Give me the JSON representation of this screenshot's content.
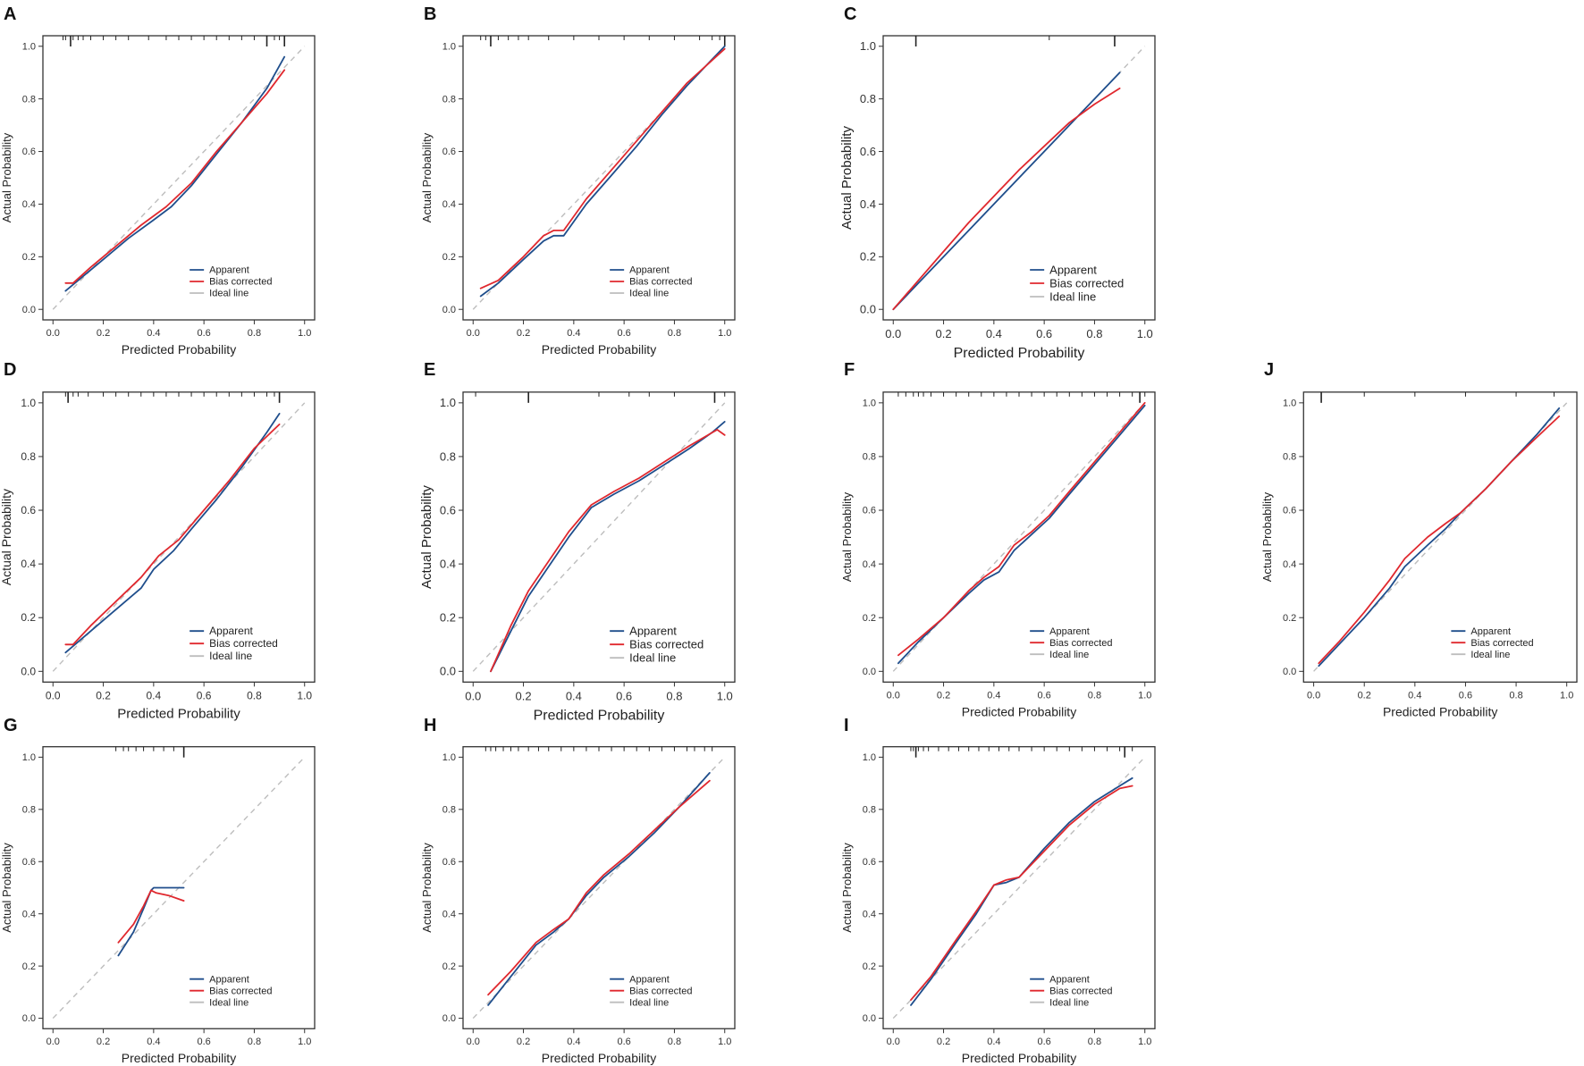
{
  "figure": {
    "description_label": "Calibration curves"
  },
  "colors": {
    "apparent": "#1f4e8c",
    "bias_corrected": "#e0282e",
    "ideal": "#bdbdbd",
    "axis": "#333333"
  },
  "chart_data": [
    {
      "type": "line",
      "panel": "A",
      "xlabel": "Predicted Probability",
      "ylabel": "Actual Probability",
      "xlim": [
        0,
        1
      ],
      "ylim": [
        0,
        1
      ],
      "xticks": [
        "0.0",
        "0.2",
        "0.4",
        "0.6",
        "0.8",
        "1.0"
      ],
      "yticks": [
        "0.0",
        "0.2",
        "0.4",
        "0.6",
        "0.8",
        "1.0"
      ],
      "legend": [
        "Apparent",
        "Bias corrected",
        "Ideal line"
      ],
      "series": [
        {
          "name": "Apparent",
          "x": [
            0.05,
            0.1,
            0.2,
            0.3,
            0.4,
            0.47,
            0.55,
            0.65,
            0.75,
            0.85,
            0.92
          ],
          "y": [
            0.07,
            0.11,
            0.19,
            0.27,
            0.34,
            0.39,
            0.47,
            0.59,
            0.71,
            0.84,
            0.96
          ]
        },
        {
          "name": "Bias corrected",
          "x": [
            0.05,
            0.08,
            0.15,
            0.25,
            0.35,
            0.45,
            0.55,
            0.65,
            0.75,
            0.85,
            0.92
          ],
          "y": [
            0.1,
            0.1,
            0.16,
            0.24,
            0.32,
            0.39,
            0.48,
            0.6,
            0.71,
            0.82,
            0.91
          ]
        }
      ],
      "rug": [
        0.04,
        0.05,
        0.07,
        0.08,
        0.1,
        0.12,
        0.15,
        0.2,
        0.25,
        0.3,
        0.38,
        0.45,
        0.5,
        0.55,
        0.6,
        0.65,
        0.7,
        0.75,
        0.8,
        0.85,
        0.88,
        0.9,
        0.92
      ],
      "rug_tall": [
        0.07,
        0.85,
        0.92
      ]
    },
    {
      "type": "line",
      "panel": "B",
      "xlabel": "Predicted Probability",
      "ylabel": "Actual Probability",
      "xlim": [
        0,
        1
      ],
      "ylim": [
        0,
        1
      ],
      "xticks": [
        "0.0",
        "0.2",
        "0.4",
        "0.6",
        "0.8",
        "1.0"
      ],
      "yticks": [
        "0.0",
        "0.2",
        "0.4",
        "0.6",
        "0.8",
        "1.0"
      ],
      "legend": [
        "Apparent",
        "Bias corrected",
        "Ideal line"
      ],
      "series": [
        {
          "name": "Apparent",
          "x": [
            0.03,
            0.1,
            0.2,
            0.28,
            0.32,
            0.36,
            0.45,
            0.55,
            0.65,
            0.75,
            0.85,
            1.0
          ],
          "y": [
            0.05,
            0.1,
            0.19,
            0.26,
            0.28,
            0.28,
            0.4,
            0.51,
            0.62,
            0.74,
            0.85,
            1.0
          ]
        },
        {
          "name": "Bias corrected",
          "x": [
            0.03,
            0.1,
            0.2,
            0.28,
            0.32,
            0.36,
            0.45,
            0.55,
            0.65,
            0.75,
            0.85,
            1.0
          ],
          "y": [
            0.08,
            0.11,
            0.2,
            0.28,
            0.3,
            0.3,
            0.42,
            0.53,
            0.64,
            0.75,
            0.86,
            0.99
          ]
        }
      ],
      "rug": [
        0.03,
        0.05,
        0.07,
        0.1,
        0.14,
        0.18,
        0.22,
        0.3,
        0.4,
        0.5,
        0.6,
        0.7,
        0.8,
        0.9,
        0.95,
        0.98,
        1.0
      ],
      "rug_tall": [
        0.07,
        1.0
      ]
    },
    {
      "type": "line",
      "panel": "C",
      "xlabel": "Predicted Probability",
      "ylabel": "Actual Probability",
      "xlim": [
        0,
        1
      ],
      "ylim": [
        0,
        1
      ],
      "xticks": [
        "0.0",
        "0.2",
        "0.4",
        "0.6",
        "0.8",
        "1.0"
      ],
      "yticks": [
        "0.0",
        "0.2",
        "0.4",
        "0.6",
        "0.8",
        "1.0"
      ],
      "legend": [
        "Apparent",
        "Bias corrected",
        "Ideal line"
      ],
      "series": [
        {
          "name": "Apparent",
          "x": [
            0.0,
            0.2,
            0.4,
            0.6,
            0.8,
            0.9
          ],
          "y": [
            0.0,
            0.2,
            0.4,
            0.6,
            0.8,
            0.9
          ]
        },
        {
          "name": "Bias corrected",
          "x": [
            0.0,
            0.1,
            0.2,
            0.3,
            0.4,
            0.5,
            0.6,
            0.7,
            0.8,
            0.9
          ],
          "y": [
            0.0,
            0.11,
            0.22,
            0.33,
            0.43,
            0.53,
            0.62,
            0.71,
            0.78,
            0.84
          ]
        }
      ],
      "rug": [
        0.09,
        0.62,
        0.88
      ],
      "rug_tall": [
        0.09,
        0.88
      ]
    },
    {
      "type": "line",
      "panel": "D",
      "xlabel": "Predicted Probability",
      "ylabel": "Actual Probability",
      "xlim": [
        0,
        1
      ],
      "ylim": [
        0,
        1
      ],
      "xticks": [
        "0.0",
        "0.2",
        "0.4",
        "0.6",
        "0.8",
        "1.0"
      ],
      "yticks": [
        "0.0",
        "0.2",
        "0.4",
        "0.6",
        "0.8",
        "1.0"
      ],
      "legend": [
        "Apparent",
        "Bias corrected",
        "Ideal line"
      ],
      "series": [
        {
          "name": "Apparent",
          "x": [
            0.05,
            0.1,
            0.2,
            0.3,
            0.35,
            0.4,
            0.48,
            0.55,
            0.65,
            0.75,
            0.85,
            0.9
          ],
          "y": [
            0.07,
            0.11,
            0.19,
            0.27,
            0.31,
            0.38,
            0.45,
            0.53,
            0.64,
            0.76,
            0.89,
            0.96
          ]
        },
        {
          "name": "Bias corrected",
          "x": [
            0.05,
            0.08,
            0.15,
            0.25,
            0.35,
            0.42,
            0.5,
            0.6,
            0.7,
            0.8,
            0.9
          ],
          "y": [
            0.1,
            0.1,
            0.17,
            0.26,
            0.35,
            0.43,
            0.49,
            0.6,
            0.71,
            0.83,
            0.92
          ]
        }
      ],
      "rug": [
        0.05,
        0.06,
        0.08,
        0.1,
        0.14,
        0.2,
        0.25,
        0.3,
        0.35,
        0.4,
        0.45,
        0.5,
        0.55,
        0.6,
        0.65,
        0.7,
        0.75,
        0.8,
        0.85,
        0.88,
        0.9
      ],
      "rug_tall": [
        0.06,
        0.9
      ]
    },
    {
      "type": "line",
      "panel": "E",
      "xlabel": "Predicted Probability",
      "ylabel": "Actual Probability",
      "xlim": [
        0,
        1
      ],
      "ylim": [
        0,
        1
      ],
      "xticks": [
        "0.0",
        "0.2",
        "0.4",
        "0.6",
        "0.8",
        "1.0"
      ],
      "yticks": [
        "0.0",
        "0.2",
        "0.4",
        "0.6",
        "0.8",
        "1.0"
      ],
      "legend": [
        "Apparent",
        "Bias corrected",
        "Ideal line"
      ],
      "series": [
        {
          "name": "Apparent",
          "x": [
            0.07,
            0.15,
            0.22,
            0.3,
            0.38,
            0.47,
            0.56,
            0.66,
            0.76,
            0.86,
            0.95,
            1.0
          ],
          "y": [
            0.0,
            0.15,
            0.28,
            0.39,
            0.5,
            0.61,
            0.66,
            0.71,
            0.77,
            0.83,
            0.89,
            0.93
          ]
        },
        {
          "name": "Bias corrected",
          "x": [
            0.07,
            0.15,
            0.22,
            0.3,
            0.38,
            0.47,
            0.56,
            0.66,
            0.76,
            0.86,
            0.97,
            1.0
          ],
          "y": [
            0.0,
            0.17,
            0.3,
            0.41,
            0.52,
            0.62,
            0.67,
            0.72,
            0.78,
            0.84,
            0.9,
            0.88
          ]
        }
      ],
      "rug": [
        0.01,
        0.22,
        0.5,
        0.62,
        0.7,
        0.8,
        0.96,
        1.0
      ],
      "rug_tall": [
        0.22,
        0.96
      ]
    },
    {
      "type": "line",
      "panel": "F",
      "xlabel": "Predicted Probability",
      "ylabel": "Actual Probability",
      "xlim": [
        0,
        1
      ],
      "ylim": [
        0,
        1
      ],
      "xticks": [
        "0.0",
        "0.2",
        "0.4",
        "0.6",
        "0.8",
        "1.0"
      ],
      "yticks": [
        "0.0",
        "0.2",
        "0.4",
        "0.6",
        "0.8",
        "1.0"
      ],
      "legend": [
        "Apparent",
        "Bias corrected",
        "Ideal line"
      ],
      "series": [
        {
          "name": "Apparent",
          "x": [
            0.02,
            0.1,
            0.2,
            0.3,
            0.36,
            0.42,
            0.48,
            0.55,
            0.62,
            0.7,
            0.8,
            0.9,
            1.0
          ],
          "y": [
            0.03,
            0.11,
            0.2,
            0.29,
            0.34,
            0.37,
            0.45,
            0.51,
            0.57,
            0.66,
            0.77,
            0.88,
            0.99
          ]
        },
        {
          "name": "Bias corrected",
          "x": [
            0.02,
            0.1,
            0.2,
            0.3,
            0.36,
            0.42,
            0.48,
            0.55,
            0.62,
            0.7,
            0.8,
            0.9,
            1.0
          ],
          "y": [
            0.06,
            0.12,
            0.2,
            0.3,
            0.35,
            0.39,
            0.47,
            0.52,
            0.58,
            0.67,
            0.78,
            0.89,
            1.0
          ]
        }
      ],
      "rug": [
        0.02,
        0.05,
        0.08,
        0.1,
        0.12,
        0.15,
        0.2,
        0.25,
        0.3,
        0.35,
        0.4,
        0.45,
        0.5,
        0.55,
        0.6,
        0.65,
        0.7,
        0.75,
        0.8,
        0.85,
        0.9,
        0.95,
        0.98,
        1.0
      ],
      "rug_tall": [
        0.98
      ]
    },
    {
      "type": "line",
      "panel": "J",
      "xlabel": "Predicted Probability",
      "ylabel": "Actual Probability",
      "xlim": [
        0,
        1
      ],
      "ylim": [
        0,
        1
      ],
      "xticks": [
        "0.0",
        "0.2",
        "0.4",
        "0.6",
        "0.8",
        "1.0"
      ],
      "yticks": [
        "0.0",
        "0.2",
        "0.4",
        "0.6",
        "0.8",
        "1.0"
      ],
      "legend": [
        "Apparent",
        "Bias corrected",
        "Ideal line"
      ],
      "series": [
        {
          "name": "Apparent",
          "x": [
            0.02,
            0.1,
            0.2,
            0.3,
            0.36,
            0.45,
            0.52,
            0.58,
            0.68,
            0.78,
            0.88,
            0.97
          ],
          "y": [
            0.02,
            0.1,
            0.2,
            0.31,
            0.39,
            0.47,
            0.53,
            0.59,
            0.68,
            0.78,
            0.88,
            0.98
          ]
        },
        {
          "name": "Bias corrected",
          "x": [
            0.02,
            0.1,
            0.2,
            0.3,
            0.36,
            0.45,
            0.52,
            0.58,
            0.68,
            0.78,
            0.88,
            0.97
          ],
          "y": [
            0.03,
            0.11,
            0.22,
            0.34,
            0.42,
            0.5,
            0.55,
            0.59,
            0.68,
            0.78,
            0.87,
            0.95
          ]
        }
      ],
      "rug": [
        0.03,
        0.2,
        0.4,
        0.6,
        0.8,
        0.95
      ],
      "rug_tall": [
        0.03
      ]
    },
    {
      "type": "line",
      "panel": "G",
      "xlabel": "Predicted Probability",
      "ylabel": "Actual Probability",
      "xlim": [
        0,
        1
      ],
      "ylim": [
        0,
        1
      ],
      "xticks": [
        "0.0",
        "0.2",
        "0.4",
        "0.6",
        "0.8",
        "1.0"
      ],
      "yticks": [
        "0.0",
        "0.2",
        "0.4",
        "0.6",
        "0.8",
        "1.0"
      ],
      "legend": [
        "Apparent",
        "Bias corrected",
        "Ideal line"
      ],
      "series": [
        {
          "name": "Apparent",
          "x": [
            0.26,
            0.32,
            0.36,
            0.39,
            0.4,
            0.45,
            0.52
          ],
          "y": [
            0.24,
            0.33,
            0.42,
            0.49,
            0.5,
            0.5,
            0.5
          ]
        },
        {
          "name": "Bias corrected",
          "x": [
            0.26,
            0.32,
            0.36,
            0.39,
            0.41,
            0.46,
            0.52
          ],
          "y": [
            0.29,
            0.36,
            0.43,
            0.49,
            0.48,
            0.47,
            0.45
          ]
        }
      ],
      "rug": [
        0.25,
        0.28,
        0.3,
        0.33,
        0.36,
        0.4,
        0.44,
        0.48,
        0.52
      ],
      "rug_tall": [
        0.52
      ]
    },
    {
      "type": "line",
      "panel": "H",
      "xlabel": "Predicted Probability",
      "ylabel": "Actual Probability",
      "xlim": [
        0,
        1
      ],
      "ylim": [
        0,
        1
      ],
      "xticks": [
        "0.0",
        "0.2",
        "0.4",
        "0.6",
        "0.8",
        "1.0"
      ],
      "yticks": [
        "0.0",
        "0.2",
        "0.4",
        "0.6",
        "0.8",
        "1.0"
      ],
      "legend": [
        "Apparent",
        "Bias corrected",
        "Ideal line"
      ],
      "series": [
        {
          "name": "Apparent",
          "x": [
            0.06,
            0.15,
            0.25,
            0.32,
            0.38,
            0.45,
            0.52,
            0.62,
            0.72,
            0.82,
            0.94
          ],
          "y": [
            0.05,
            0.16,
            0.28,
            0.33,
            0.38,
            0.47,
            0.54,
            0.62,
            0.71,
            0.81,
            0.94
          ]
        },
        {
          "name": "Bias corrected",
          "x": [
            0.06,
            0.15,
            0.25,
            0.32,
            0.38,
            0.45,
            0.52,
            0.62,
            0.72,
            0.82,
            0.94
          ],
          "y": [
            0.09,
            0.18,
            0.29,
            0.34,
            0.38,
            0.48,
            0.55,
            0.63,
            0.72,
            0.81,
            0.91
          ]
        }
      ],
      "rug": [
        0.05,
        0.07,
        0.09,
        0.12,
        0.15,
        0.18,
        0.22,
        0.26,
        0.3,
        0.35,
        0.4,
        0.45,
        0.5,
        0.55,
        0.6,
        0.65,
        0.7,
        0.75,
        0.8,
        0.85,
        0.88,
        0.92,
        0.95
      ],
      "rug_tall": [
        0.93
      ]
    },
    {
      "type": "line",
      "panel": "I",
      "xlabel": "Predicted Probability",
      "ylabel": "Actual Probability",
      "xlim": [
        0,
        1
      ],
      "ylim": [
        0,
        1
      ],
      "xticks": [
        "0.0",
        "0.2",
        "0.4",
        "0.6",
        "0.8",
        "1.0"
      ],
      "yticks": [
        "0.0",
        "0.2",
        "0.4",
        "0.6",
        "0.8",
        "1.0"
      ],
      "legend": [
        "Apparent",
        "Bias corrected",
        "Ideal line"
      ],
      "series": [
        {
          "name": "Apparent",
          "x": [
            0.07,
            0.15,
            0.25,
            0.33,
            0.4,
            0.45,
            0.5,
            0.6,
            0.7,
            0.8,
            0.9,
            0.95
          ],
          "y": [
            0.05,
            0.15,
            0.29,
            0.4,
            0.51,
            0.52,
            0.54,
            0.65,
            0.75,
            0.83,
            0.89,
            0.92
          ]
        },
        {
          "name": "Bias corrected",
          "x": [
            0.07,
            0.15,
            0.25,
            0.33,
            0.4,
            0.45,
            0.5,
            0.6,
            0.7,
            0.8,
            0.9,
            0.95
          ],
          "y": [
            0.07,
            0.16,
            0.3,
            0.41,
            0.51,
            0.53,
            0.54,
            0.64,
            0.74,
            0.82,
            0.88,
            0.89
          ]
        }
      ],
      "rug": [
        0.07,
        0.08,
        0.09,
        0.1,
        0.12,
        0.14,
        0.18,
        0.22,
        0.26,
        0.3,
        0.34,
        0.38,
        0.42,
        0.46,
        0.5,
        0.55,
        0.6,
        0.65,
        0.7,
        0.75,
        0.8,
        0.85,
        0.9,
        0.92,
        0.95
      ],
      "rug_tall": [
        0.09,
        0.92
      ]
    }
  ]
}
